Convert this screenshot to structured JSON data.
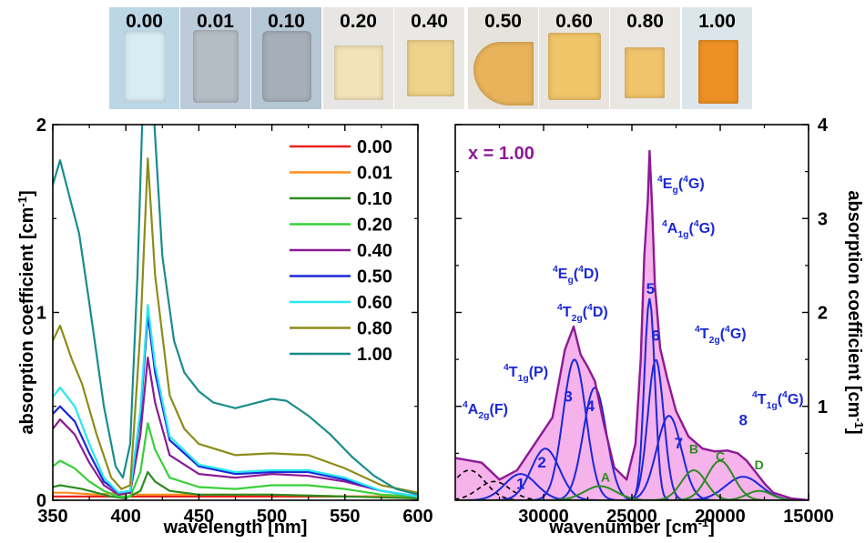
{
  "photo_strip": {
    "samples": [
      {
        "label": "0.00",
        "bg": "#bcd6e6",
        "sample_color": "#d8ecf4"
      },
      {
        "label": "0.01",
        "bg": "#bccbd9",
        "sample_color": "#b4bcc4"
      },
      {
        "label": "0.10",
        "bg": "#b5c6d4",
        "sample_color": "#a6aeb8"
      },
      {
        "label": "0.20",
        "bg": "#e7e6e4",
        "sample_color": "#f3e3b8"
      },
      {
        "label": "0.40",
        "bg": "#e9e8e5",
        "sample_color": "#efd28a"
      },
      {
        "label": "0.50",
        "bg": "#e6e2dc",
        "sample_color": "#e8b35a"
      },
      {
        "label": "0.60",
        "bg": "#e8e4df",
        "sample_color": "#f0c468"
      },
      {
        "label": "0.80",
        "bg": "#e9e7e4",
        "sample_color": "#f1c46c"
      },
      {
        "label": "1.00",
        "bg": "#dce6ea",
        "sample_color": "#ee9024"
      }
    ]
  },
  "chart_data": [
    {
      "type": "line",
      "xlabel": "wavelength [nm]",
      "ylabel": "absorption coefficient [cm⁻¹]",
      "xlim": [
        350,
        600
      ],
      "ylim": [
        0,
        2
      ],
      "xticks": [
        350,
        400,
        450,
        500,
        550,
        600
      ],
      "yticks": [
        0,
        1,
        2
      ],
      "legend_position": "top-right",
      "series": [
        {
          "name": "0.00",
          "color": "#e8211b",
          "x": [
            350,
            360,
            380,
            400,
            420,
            450,
            500,
            550,
            600
          ],
          "y": [
            0.02,
            0.02,
            0.02,
            0.02,
            0.02,
            0.02,
            0.02,
            0.02,
            0.02
          ]
        },
        {
          "name": "0.01",
          "color": "#ff8c1a",
          "x": [
            350,
            360,
            380,
            395,
            400,
            410,
            420,
            450,
            500,
            550,
            600
          ],
          "y": [
            0.04,
            0.04,
            0.03,
            0.04,
            0.04,
            0.03,
            0.03,
            0.03,
            0.03,
            0.02,
            0.02
          ]
        },
        {
          "name": "0.10",
          "color": "#2e8b22",
          "x": [
            350,
            355,
            370,
            390,
            400,
            410,
            415,
            420,
            430,
            450,
            500,
            550,
            600
          ],
          "y": [
            0.07,
            0.08,
            0.06,
            0.02,
            0.01,
            0.05,
            0.15,
            0.1,
            0.05,
            0.03,
            0.03,
            0.02,
            0.01
          ]
        },
        {
          "name": "0.20",
          "color": "#38d038",
          "x": [
            350,
            355,
            365,
            375,
            385,
            395,
            403,
            410,
            415,
            420,
            430,
            450,
            475,
            500,
            525,
            550,
            575,
            600
          ],
          "y": [
            0.18,
            0.21,
            0.17,
            0.1,
            0.05,
            0.02,
            0.02,
            0.15,
            0.41,
            0.27,
            0.12,
            0.07,
            0.06,
            0.08,
            0.08,
            0.06,
            0.03,
            0.02
          ]
        },
        {
          "name": "0.40",
          "color": "#8c1a94",
          "x": [
            350,
            355,
            365,
            375,
            385,
            395,
            403,
            410,
            415,
            420,
            430,
            450,
            475,
            500,
            525,
            550,
            575,
            600
          ],
          "y": [
            0.38,
            0.43,
            0.35,
            0.2,
            0.08,
            0.03,
            0.04,
            0.35,
            0.76,
            0.52,
            0.24,
            0.14,
            0.12,
            0.14,
            0.13,
            0.1,
            0.05,
            0.02
          ]
        },
        {
          "name": "0.50",
          "color": "#1a28d8",
          "x": [
            350,
            355,
            365,
            375,
            385,
            395,
            403,
            410,
            415,
            420,
            430,
            450,
            475,
            500,
            525,
            550,
            575,
            600
          ],
          "y": [
            0.46,
            0.5,
            0.42,
            0.25,
            0.1,
            0.04,
            0.05,
            0.45,
            0.99,
            0.68,
            0.32,
            0.18,
            0.14,
            0.15,
            0.15,
            0.11,
            0.05,
            0.02
          ]
        },
        {
          "name": "0.60",
          "color": "#28e8f0",
          "x": [
            350,
            355,
            365,
            375,
            385,
            395,
            403,
            410,
            415,
            420,
            430,
            450,
            475,
            500,
            525,
            550,
            575,
            600
          ],
          "y": [
            0.55,
            0.6,
            0.5,
            0.3,
            0.12,
            0.04,
            0.05,
            0.48,
            1.04,
            0.72,
            0.34,
            0.19,
            0.15,
            0.16,
            0.16,
            0.12,
            0.05,
            0.02
          ]
        },
        {
          "name": "0.80",
          "color": "#8c8c1a",
          "x": [
            350,
            355,
            363,
            370,
            380,
            390,
            397,
            403,
            410,
            415,
            420,
            430,
            440,
            450,
            475,
            500,
            525,
            550,
            575,
            600
          ],
          "y": [
            0.85,
            0.93,
            0.75,
            0.62,
            0.35,
            0.12,
            0.06,
            0.08,
            0.9,
            1.82,
            1.2,
            0.56,
            0.38,
            0.3,
            0.24,
            0.25,
            0.24,
            0.17,
            0.08,
            0.04
          ]
        },
        {
          "name": "1.00",
          "color": "#1a8c8c",
          "x": [
            350,
            355,
            362,
            368,
            375,
            385,
            393,
            398,
            403,
            408,
            412,
            418,
            425,
            433,
            440,
            450,
            460,
            475,
            490,
            500,
            510,
            525,
            540,
            555,
            570,
            585,
            600
          ],
          "y": [
            1.68,
            1.81,
            1.6,
            1.42,
            1.05,
            0.5,
            0.18,
            0.12,
            0.3,
            1.2,
            2.2,
            2.2,
            1.3,
            0.85,
            0.68,
            0.58,
            0.52,
            0.49,
            0.52,
            0.54,
            0.53,
            0.45,
            0.35,
            0.23,
            0.13,
            0.06,
            0.03
          ]
        }
      ]
    },
    {
      "type": "area",
      "xlabel": "wavenumber [cm⁻¹]",
      "ylabel": "absorption coefficient [cm⁻¹]",
      "xlim": [
        35000,
        15000
      ],
      "ylim": [
        0,
        4
      ],
      "xticks": [
        30000,
        25000,
        20000,
        15000
      ],
      "yticks": [
        1,
        2,
        3,
        4
      ],
      "series_label": "x = 1.00",
      "total": {
        "color": "#8c1a94",
        "fill": "#f6b2ea",
        "x": [
          35000,
          33500,
          32500,
          31500,
          30500,
          29500,
          28800,
          28300,
          27900,
          27500,
          27100,
          26600,
          26000,
          25300,
          24800,
          24500,
          24300,
          24100,
          24000,
          23850,
          23700,
          23400,
          23000,
          22500,
          21800,
          21000,
          20300,
          19600,
          19000,
          18500,
          18000,
          17500,
          17000,
          16000,
          15000
        ],
        "y": [
          0.45,
          0.4,
          0.22,
          0.32,
          0.6,
          0.88,
          1.6,
          1.85,
          1.55,
          1.42,
          1.27,
          0.82,
          0.35,
          0.22,
          0.6,
          1.5,
          2.6,
          3.2,
          3.72,
          3.1,
          2.3,
          1.62,
          1.3,
          0.95,
          0.68,
          0.55,
          0.52,
          0.53,
          0.5,
          0.42,
          0.3,
          0.18,
          0.08,
          0.02,
          0.0
        ]
      },
      "components": [
        {
          "label": "1",
          "color": "#1a28d8",
          "center": 31300,
          "height": 0.28,
          "width": 900
        },
        {
          "label": "2",
          "color": "#1a28d8",
          "center": 29900,
          "height": 0.55,
          "width": 800
        },
        {
          "label": "3",
          "color": "#1a28d8",
          "center": 28250,
          "height": 1.5,
          "width": 650
        },
        {
          "label": "4",
          "color": "#1a28d8",
          "center": 27100,
          "height": 1.2,
          "width": 650
        },
        {
          "label": "5",
          "color": "#1a28d8",
          "center": 24000,
          "height": 2.15,
          "width": 300
        },
        {
          "label": "6",
          "color": "#1a28d8",
          "center": 23650,
          "height": 1.5,
          "width": 450
        },
        {
          "label": "7",
          "color": "#1a28d8",
          "center": 22900,
          "height": 0.9,
          "width": 700
        },
        {
          "label": "8",
          "color": "#1a28d8",
          "center": 18700,
          "height": 0.25,
          "width": 1000
        },
        {
          "label": "A",
          "color": "#2e8b22",
          "center": 26800,
          "height": 0.15,
          "width": 900
        },
        {
          "label": "B",
          "color": "#2e8b22",
          "center": 21500,
          "height": 0.32,
          "width": 700
        },
        {
          "label": "C",
          "color": "#2e8b22",
          "center": 20000,
          "height": 0.42,
          "width": 750
        },
        {
          "label": "D",
          "color": "#2e8b22",
          "center": 17800,
          "height": 0.1,
          "width": 700
        }
      ],
      "dashed_components": [
        {
          "color": "#000000",
          "center": 34200,
          "height": 0.32,
          "width": 900
        },
        {
          "color": "#000000",
          "center": 32800,
          "height": 0.2,
          "width": 900
        }
      ],
      "transition_labels": [
        {
          "text": "⁴A₂g(F)",
          "color": "#1a28d8"
        },
        {
          "text": "⁴T₁g(P)",
          "color": "#1a28d8"
        },
        {
          "text": "⁴Eg(⁴D)",
          "color": "#1a28d8"
        },
        {
          "text": "⁴T₂g(⁴D)",
          "color": "#1a28d8"
        },
        {
          "text": "⁴Eg(⁴G)",
          "color": "#1a28d8"
        },
        {
          "text": "⁴A₁g(⁴G)",
          "color": "#1a28d8"
        },
        {
          "text": "⁴T₂g(⁴G)",
          "color": "#1a28d8"
        },
        {
          "text": "⁴T₁g(⁴G)",
          "color": "#1a28d8"
        }
      ]
    }
  ]
}
